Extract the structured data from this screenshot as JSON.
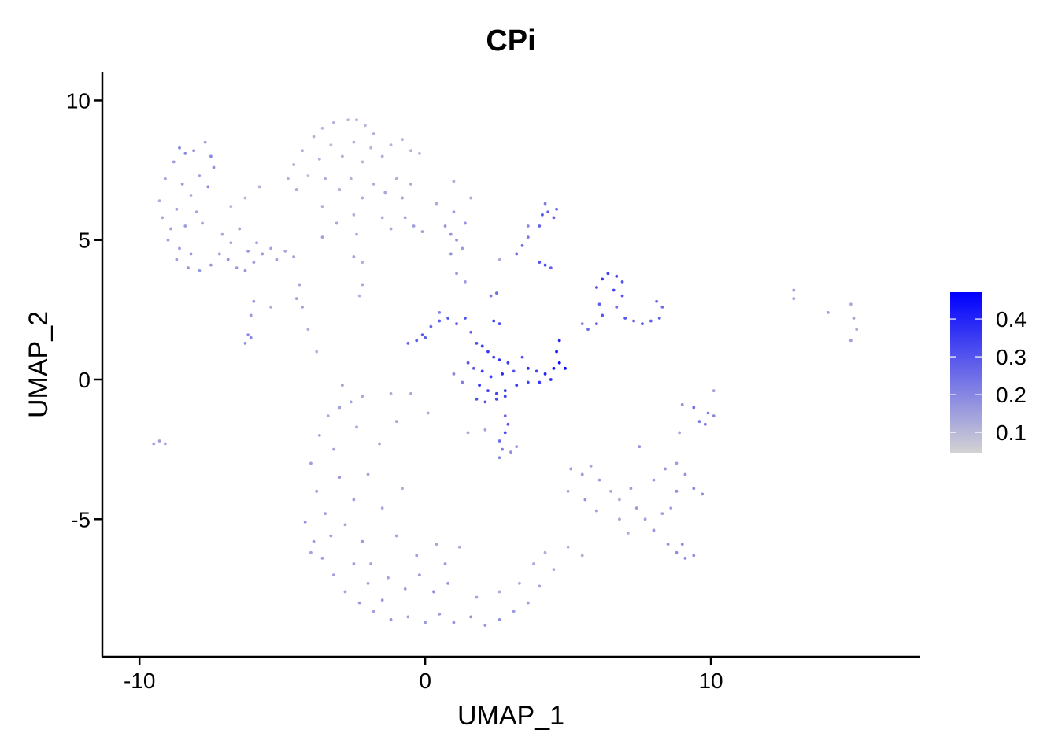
{
  "chart_data": {
    "type": "scatter",
    "title": "CPi",
    "xlabel": "UMAP_1",
    "ylabel": "UMAP_2",
    "xlim": [
      -11.3,
      17.3
    ],
    "ylim": [
      -9.9,
      11.0
    ],
    "xticks": [
      -10,
      0,
      10
    ],
    "yticks": [
      -5,
      0,
      5,
      10
    ],
    "xtick_labels": [
      "-10",
      "0",
      "10"
    ],
    "ytick_labels": [
      "-5",
      "0",
      "5",
      "10"
    ],
    "grid": false,
    "legend": {
      "placement": "right",
      "type": "colorbar",
      "range": [
        0.046,
        0.471
      ],
      "ticks": [
        0.1,
        0.2,
        0.3,
        0.4
      ],
      "tick_labels": [
        "0.1",
        "0.2",
        "0.3",
        "0.4"
      ],
      "low_color": "#D3D3D3",
      "high_color": "#0000FF"
    },
    "points": [
      [
        -8.6,
        8.3,
        0.2
      ],
      [
        -8.4,
        8.1,
        0.2
      ],
      [
        -8.1,
        8.2,
        0.18
      ],
      [
        -7.7,
        8.5,
        0.15
      ],
      [
        -7.5,
        8.0,
        0.2
      ],
      [
        -7.4,
        7.6,
        0.18
      ],
      [
        -8.8,
        7.8,
        0.15
      ],
      [
        -9.1,
        7.2,
        0.14
      ],
      [
        -8.5,
        7.0,
        0.16
      ],
      [
        -7.9,
        7.3,
        0.15
      ],
      [
        -8.2,
        6.6,
        0.14
      ],
      [
        -7.6,
        6.9,
        0.2
      ],
      [
        -9.3,
        6.4,
        0.12
      ],
      [
        -8.7,
        6.1,
        0.15
      ],
      [
        -8.0,
        6.0,
        0.14
      ],
      [
        -9.2,
        5.8,
        0.13
      ],
      [
        -8.9,
        5.4,
        0.15
      ],
      [
        -8.4,
        5.5,
        0.16
      ],
      [
        -7.8,
        5.6,
        0.14
      ],
      [
        -9.0,
        5.0,
        0.15
      ],
      [
        -8.6,
        4.7,
        0.16
      ],
      [
        -8.2,
        4.5,
        0.17
      ],
      [
        -8.7,
        4.3,
        0.15
      ],
      [
        -8.3,
        4.0,
        0.18
      ],
      [
        -7.9,
        3.9,
        0.16
      ],
      [
        -7.5,
        4.1,
        0.17
      ],
      [
        -7.2,
        4.5,
        0.15
      ],
      [
        -6.9,
        4.3,
        0.18
      ],
      [
        -6.6,
        4.0,
        0.16
      ],
      [
        -6.3,
        3.9,
        0.17
      ],
      [
        -6.0,
        4.2,
        0.15
      ],
      [
        -5.7,
        4.5,
        0.16
      ],
      [
        -5.4,
        4.7,
        0.14
      ],
      [
        -6.8,
        4.9,
        0.14
      ],
      [
        -6.2,
        4.6,
        0.16
      ],
      [
        -5.9,
        4.9,
        0.15
      ],
      [
        -7.1,
        5.2,
        0.13
      ],
      [
        -6.5,
        5.4,
        0.14
      ],
      [
        -5.2,
        4.3,
        0.15
      ],
      [
        -4.9,
        4.6,
        0.13
      ],
      [
        -4.6,
        4.4,
        0.14
      ],
      [
        -6.8,
        6.2,
        0.12
      ],
      [
        -6.3,
        6.5,
        0.11
      ],
      [
        -5.8,
        6.9,
        0.12
      ],
      [
        -6.0,
        2.8,
        0.16
      ],
      [
        -6.1,
        2.3,
        0.16
      ],
      [
        -6.2,
        1.6,
        0.2
      ],
      [
        -6.3,
        1.3,
        0.18
      ],
      [
        -6.1,
        1.5,
        0.2
      ],
      [
        -5.4,
        2.6,
        0.12
      ],
      [
        -4.4,
        3.4,
        0.14
      ],
      [
        -4.5,
        2.9,
        0.15
      ],
      [
        -4.3,
        2.6,
        0.14
      ],
      [
        -4.1,
        1.8,
        0.12
      ],
      [
        -3.8,
        1.0,
        0.11
      ],
      [
        -9.3,
        -2.2,
        0.15
      ],
      [
        -9.5,
        -2.3,
        0.14
      ],
      [
        -9.1,
        -2.3,
        0.13
      ],
      [
        -3.6,
        9.0,
        0.1
      ],
      [
        -3.2,
        9.2,
        0.11
      ],
      [
        -2.7,
        9.3,
        0.1
      ],
      [
        -2.4,
        9.3,
        0.12
      ],
      [
        -2.1,
        9.1,
        0.1
      ],
      [
        -1.8,
        8.8,
        0.11
      ],
      [
        -3.9,
        8.7,
        0.11
      ],
      [
        -4.3,
        8.2,
        0.12
      ],
      [
        -4.6,
        7.7,
        0.13
      ],
      [
        -4.8,
        7.2,
        0.11
      ],
      [
        -4.5,
        6.8,
        0.12
      ],
      [
        -4.1,
        7.3,
        0.1
      ],
      [
        -3.7,
        7.9,
        0.11
      ],
      [
        -3.3,
        8.4,
        0.1
      ],
      [
        -2.9,
        8.0,
        0.12
      ],
      [
        -2.5,
        8.5,
        0.11
      ],
      [
        -2.2,
        7.8,
        0.1
      ],
      [
        -1.9,
        8.3,
        0.11
      ],
      [
        -1.5,
        8.0,
        0.12
      ],
      [
        -1.2,
        8.4,
        0.11
      ],
      [
        -0.8,
        8.6,
        0.1
      ],
      [
        -0.5,
        8.2,
        0.12
      ],
      [
        -0.2,
        8.1,
        0.1
      ],
      [
        -3.5,
        7.2,
        0.12
      ],
      [
        -3.0,
        6.8,
        0.11
      ],
      [
        -2.6,
        7.2,
        0.12
      ],
      [
        -2.2,
        6.5,
        0.13
      ],
      [
        -1.8,
        7.0,
        0.12
      ],
      [
        -1.4,
        6.7,
        0.13
      ],
      [
        -1.0,
        7.2,
        0.12
      ],
      [
        -0.8,
        6.5,
        0.14
      ],
      [
        -0.5,
        7.0,
        0.13
      ],
      [
        -0.7,
        5.8,
        0.14
      ],
      [
        -0.4,
        5.5,
        0.15
      ],
      [
        -0.1,
        5.3,
        0.15
      ],
      [
        -3.6,
        6.2,
        0.12
      ],
      [
        -3.1,
        5.6,
        0.14
      ],
      [
        -3.6,
        5.1,
        0.15
      ],
      [
        -2.5,
        5.9,
        0.11
      ],
      [
        -2.4,
        5.2,
        0.13
      ],
      [
        -2.5,
        4.4,
        0.14
      ],
      [
        -2.2,
        4.2,
        0.12
      ],
      [
        -2.2,
        3.4,
        0.13
      ],
      [
        -2.3,
        3.0,
        0.11
      ],
      [
        -1.5,
        5.8,
        0.12
      ],
      [
        -1.2,
        5.4,
        0.13
      ],
      [
        0.7,
        5.5,
        0.17
      ],
      [
        0.9,
        5.2,
        0.18
      ],
      [
        1.1,
        5.0,
        0.17
      ],
      [
        1.3,
        4.7,
        0.16
      ],
      [
        0.9,
        4.5,
        0.18
      ],
      [
        1.4,
        5.6,
        0.17
      ],
      [
        1.0,
        6.0,
        0.16
      ],
      [
        1.6,
        6.5,
        0.13
      ],
      [
        1.0,
        7.1,
        0.12
      ],
      [
        1.1,
        3.8,
        0.16
      ],
      [
        1.4,
        3.5,
        0.15
      ],
      [
        0.4,
        6.3,
        0.13
      ],
      [
        3.2,
        4.5,
        0.25
      ],
      [
        3.4,
        4.8,
        0.25
      ],
      [
        3.6,
        5.1,
        0.23
      ],
      [
        3.6,
        5.5,
        0.2
      ],
      [
        4.0,
        5.5,
        0.27
      ],
      [
        4.1,
        5.9,
        0.3
      ],
      [
        4.3,
        6.0,
        0.28
      ],
      [
        4.5,
        5.8,
        0.27
      ],
      [
        4.6,
        6.1,
        0.26
      ],
      [
        4.2,
        6.3,
        0.22
      ],
      [
        4.0,
        4.2,
        0.3
      ],
      [
        4.2,
        4.1,
        0.32
      ],
      [
        4.4,
        4.0,
        0.28
      ],
      [
        2.6,
        4.3,
        0.12
      ],
      [
        -0.6,
        1.3,
        0.27
      ],
      [
        -0.3,
        1.4,
        0.28
      ],
      [
        -0.1,
        1.6,
        0.3
      ],
      [
        0.0,
        1.5,
        0.28
      ],
      [
        0.2,
        1.9,
        0.26
      ],
      [
        0.5,
        2.1,
        0.28
      ],
      [
        0.8,
        2.2,
        0.3
      ],
      [
        1.1,
        2.0,
        0.29
      ],
      [
        1.4,
        2.2,
        0.3
      ],
      [
        1.6,
        1.7,
        0.26
      ],
      [
        2.4,
        2.1,
        0.35
      ],
      [
        2.6,
        2.0,
        0.33
      ],
      [
        2.5,
        3.1,
        0.25
      ],
      [
        2.3,
        3.0,
        0.23
      ],
      [
        0.5,
        2.4,
        0.2
      ],
      [
        1.8,
        1.3,
        0.32
      ],
      [
        2.0,
        1.2,
        0.36
      ],
      [
        2.2,
        1.0,
        0.35
      ],
      [
        2.4,
        0.8,
        0.33
      ],
      [
        2.6,
        0.7,
        0.37
      ],
      [
        2.9,
        0.6,
        0.35
      ],
      [
        1.5,
        0.6,
        0.3
      ],
      [
        1.7,
        0.4,
        0.28
      ],
      [
        2.0,
        0.3,
        0.36
      ],
      [
        2.3,
        0.1,
        0.34
      ],
      [
        2.7,
        0.2,
        0.38
      ],
      [
        3.1,
        0.3,
        0.3
      ],
      [
        1.9,
        -0.2,
        0.36
      ],
      [
        2.2,
        -0.4,
        0.34
      ],
      [
        2.5,
        -0.5,
        0.33
      ],
      [
        2.8,
        -0.4,
        0.37
      ],
      [
        3.2,
        -0.2,
        0.35
      ],
      [
        1.8,
        -0.7,
        0.31
      ],
      [
        2.1,
        -0.8,
        0.3
      ],
      [
        2.5,
        -0.7,
        0.32
      ],
      [
        2.8,
        -0.6,
        0.34
      ],
      [
        1.3,
        -0.1,
        0.22
      ],
      [
        1.0,
        0.2,
        0.2
      ],
      [
        3.6,
        0.4,
        0.38
      ],
      [
        3.9,
        0.3,
        0.34
      ],
      [
        4.2,
        0.2,
        0.4
      ],
      [
        4.5,
        0.4,
        0.42
      ],
      [
        4.7,
        0.6,
        0.44
      ],
      [
        4.9,
        0.4,
        0.46
      ],
      [
        4.6,
        1.0,
        0.42
      ],
      [
        4.7,
        1.4,
        0.4
      ],
      [
        4.4,
        0.0,
        0.38
      ],
      [
        4.0,
        -0.1,
        0.36
      ],
      [
        3.6,
        -0.1,
        0.33
      ],
      [
        3.4,
        0.8,
        0.3
      ],
      [
        2.8,
        -1.3,
        0.26
      ],
      [
        2.9,
        -1.6,
        0.3
      ],
      [
        2.8,
        -1.9,
        0.32
      ],
      [
        2.6,
        -2.2,
        0.25
      ],
      [
        2.7,
        -2.5,
        0.22
      ],
      [
        2.6,
        -2.8,
        0.2
      ],
      [
        3.0,
        -2.6,
        0.18
      ],
      [
        3.2,
        -2.4,
        0.16
      ],
      [
        1.5,
        -1.9,
        0.14
      ],
      [
        2.1,
        -1.8,
        0.14
      ],
      [
        5.7,
        1.8,
        0.25
      ],
      [
        6.0,
        2.0,
        0.28
      ],
      [
        6.2,
        2.3,
        0.3
      ],
      [
        6.1,
        2.7,
        0.28
      ],
      [
        6.0,
        3.3,
        0.32
      ],
      [
        6.2,
        3.6,
        0.36
      ],
      [
        6.4,
        3.8,
        0.34
      ],
      [
        6.7,
        3.7,
        0.32
      ],
      [
        6.9,
        3.5,
        0.3
      ],
      [
        6.6,
        3.2,
        0.33
      ],
      [
        6.9,
        3.0,
        0.3
      ],
      [
        6.7,
        2.6,
        0.25
      ],
      [
        7.0,
        2.2,
        0.3
      ],
      [
        7.3,
        2.1,
        0.28
      ],
      [
        7.6,
        2.0,
        0.3
      ],
      [
        7.9,
        2.1,
        0.28
      ],
      [
        8.2,
        2.2,
        0.27
      ],
      [
        8.3,
        2.6,
        0.25
      ],
      [
        8.1,
        2.8,
        0.26
      ],
      [
        5.5,
        2.0,
        0.2
      ],
      [
        12.9,
        3.2,
        0.15
      ],
      [
        12.9,
        2.9,
        0.14
      ],
      [
        14.1,
        2.4,
        0.15
      ],
      [
        14.9,
        2.7,
        0.13
      ],
      [
        15.0,
        2.2,
        0.14
      ],
      [
        15.1,
        1.8,
        0.13
      ],
      [
        14.9,
        1.4,
        0.15
      ],
      [
        9.4,
        -1.0,
        0.25
      ],
      [
        9.6,
        -1.5,
        0.23
      ],
      [
        9.9,
        -1.2,
        0.22
      ],
      [
        10.1,
        -1.3,
        0.2
      ],
      [
        9.8,
        -1.6,
        0.24
      ],
      [
        10.1,
        -0.4,
        0.15
      ],
      [
        9.0,
        -0.9,
        0.18
      ],
      [
        8.9,
        -1.9,
        0.14
      ],
      [
        7.5,
        -2.4,
        0.18
      ],
      [
        5.1,
        -3.2,
        0.15
      ],
      [
        5.5,
        -3.4,
        0.16
      ],
      [
        5.8,
        -3.1,
        0.14
      ],
      [
        6.1,
        -3.6,
        0.15
      ],
      [
        5.0,
        -4.0,
        0.14
      ],
      [
        5.6,
        -4.3,
        0.17
      ],
      [
        6.0,
        -4.7,
        0.16
      ],
      [
        6.5,
        -4.0,
        0.13
      ],
      [
        6.8,
        -4.3,
        0.12
      ],
      [
        7.2,
        -3.9,
        0.15
      ],
      [
        7.4,
        -4.6,
        0.16
      ],
      [
        6.8,
        -5.0,
        0.14
      ],
      [
        7.1,
        -5.5,
        0.13
      ],
      [
        7.7,
        -5.0,
        0.15
      ],
      [
        8.0,
        -5.4,
        0.17
      ],
      [
        8.3,
        -4.8,
        0.15
      ],
      [
        8.0,
        -3.6,
        0.16
      ],
      [
        8.4,
        -3.2,
        0.17
      ],
      [
        8.8,
        -3.0,
        0.15
      ],
      [
        9.1,
        -3.4,
        0.18
      ],
      [
        9.4,
        -3.9,
        0.2
      ],
      [
        9.7,
        -4.1,
        0.18
      ],
      [
        8.8,
        -4.0,
        0.19
      ],
      [
        8.6,
        -4.6,
        0.15
      ],
      [
        8.5,
        -5.9,
        0.17
      ],
      [
        8.8,
        -6.2,
        0.19
      ],
      [
        9.1,
        -6.4,
        0.2
      ],
      [
        9.4,
        -6.3,
        0.18
      ],
      [
        9.0,
        -5.9,
        0.18
      ],
      [
        5.0,
        -6.0,
        0.13
      ],
      [
        5.5,
        -6.3,
        0.12
      ],
      [
        4.5,
        -6.8,
        0.13
      ],
      [
        -4.0,
        -3.0,
        0.15
      ],
      [
        -3.7,
        -2.0,
        0.14
      ],
      [
        -3.4,
        -1.3,
        0.13
      ],
      [
        -3.0,
        -1.0,
        0.15
      ],
      [
        -2.6,
        -0.8,
        0.14
      ],
      [
        -2.2,
        -0.6,
        0.13
      ],
      [
        -1.2,
        -0.5,
        0.12
      ],
      [
        -0.5,
        -0.5,
        0.13
      ],
      [
        -3.8,
        -4.0,
        0.15
      ],
      [
        -4.2,
        -5.1,
        0.17
      ],
      [
        -3.9,
        -5.8,
        0.15
      ],
      [
        -3.6,
        -6.4,
        0.16
      ],
      [
        -3.2,
        -7.0,
        0.15
      ],
      [
        -2.8,
        -7.6,
        0.14
      ],
      [
        -2.3,
        -8.0,
        0.16
      ],
      [
        -1.8,
        -8.3,
        0.15
      ],
      [
        -1.2,
        -8.6,
        0.17
      ],
      [
        -0.6,
        -8.5,
        0.15
      ],
      [
        0.0,
        -8.7,
        0.16
      ],
      [
        0.5,
        -8.4,
        0.15
      ],
      [
        1.0,
        -8.7,
        0.17
      ],
      [
        1.6,
        -8.5,
        0.18
      ],
      [
        2.1,
        -8.8,
        0.17
      ],
      [
        2.6,
        -8.6,
        0.18
      ],
      [
        3.1,
        -8.3,
        0.16
      ],
      [
        3.6,
        -8.0,
        0.15
      ],
      [
        4.0,
        -7.4,
        0.14
      ],
      [
        -3.2,
        -2.5,
        0.14
      ],
      [
        -3.0,
        -3.5,
        0.16
      ],
      [
        -2.5,
        -4.3,
        0.15
      ],
      [
        -2.8,
        -5.2,
        0.14
      ],
      [
        -2.2,
        -5.8,
        0.16
      ],
      [
        -1.9,
        -6.6,
        0.15
      ],
      [
        -1.3,
        -7.1,
        0.14
      ],
      [
        -0.7,
        -7.5,
        0.15
      ],
      [
        -0.2,
        -7.0,
        0.16
      ],
      [
        0.3,
        -7.6,
        0.18
      ],
      [
        0.8,
        -7.3,
        0.17
      ],
      [
        -0.3,
        -6.3,
        0.15
      ],
      [
        -1.0,
        -5.6,
        0.14
      ],
      [
        -1.5,
        -4.6,
        0.13
      ],
      [
        -2.0,
        -3.4,
        0.14
      ],
      [
        -1.6,
        -2.3,
        0.13
      ],
      [
        -2.4,
        -1.7,
        0.14
      ],
      [
        -0.8,
        -3.9,
        0.12
      ],
      [
        0.4,
        -5.9,
        0.14
      ],
      [
        0.7,
        -6.6,
        0.16
      ],
      [
        1.2,
        -6.0,
        0.13
      ],
      [
        -3.5,
        -4.8,
        0.15
      ],
      [
        -4.0,
        -6.2,
        0.14
      ],
      [
        -3.3,
        -5.6,
        0.16
      ],
      [
        -2.5,
        -6.6,
        0.15
      ],
      [
        -2.0,
        -7.3,
        0.14
      ],
      [
        -1.5,
        -7.9,
        0.16
      ],
      [
        1.8,
        -7.8,
        0.14
      ],
      [
        2.6,
        -7.6,
        0.13
      ],
      [
        3.3,
        -7.3,
        0.12
      ],
      [
        3.8,
        -6.6,
        0.13
      ],
      [
        4.2,
        -6.2,
        0.12
      ],
      [
        -1.0,
        -1.5,
        0.14
      ],
      [
        0.1,
        -1.2,
        0.13
      ],
      [
        -2.9,
        -0.2,
        0.15
      ]
    ]
  }
}
